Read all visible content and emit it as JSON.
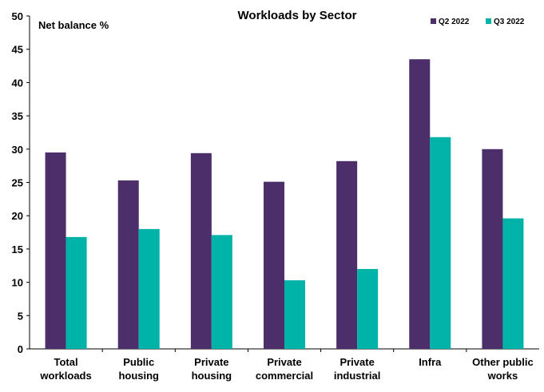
{
  "chart_data": {
    "type": "bar",
    "title": "Workloads by Sector",
    "ylabel": "Net balance %",
    "xlabel": "",
    "ylim": [
      0,
      50
    ],
    "yticks": [
      0,
      5,
      10,
      15,
      20,
      25,
      30,
      35,
      40,
      45,
      50
    ],
    "grid": false,
    "legend_position": "top-right",
    "categories": [
      [
        "Total",
        "workloads"
      ],
      [
        "Public",
        "housing"
      ],
      [
        "Private",
        "housing"
      ],
      [
        "Private",
        "commercial"
      ],
      [
        "Private",
        "industrial"
      ],
      [
        "Infra"
      ],
      [
        "Other public",
        "works"
      ]
    ],
    "series": [
      {
        "name": "Q2 2022",
        "color": "#4b2e6a",
        "values": [
          29.5,
          25.3,
          29.4,
          25.1,
          28.2,
          43.5,
          30.0
        ]
      },
      {
        "name": "Q3 2022",
        "color": "#00b3a8",
        "values": [
          16.8,
          18.0,
          17.1,
          10.3,
          12.0,
          31.8,
          19.6
        ]
      }
    ]
  }
}
